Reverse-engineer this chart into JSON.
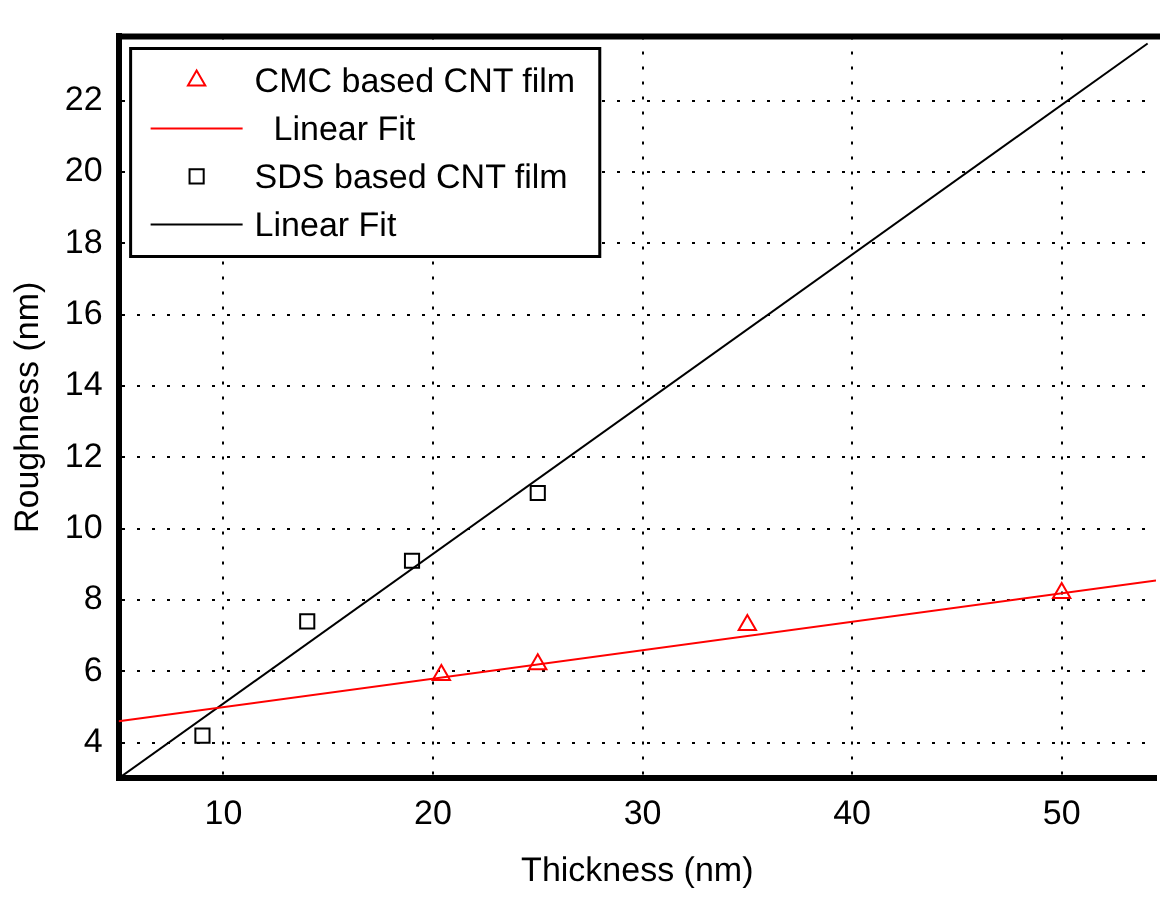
{
  "chart_data": {
    "type": "scatter",
    "xlabel": "Thickness (nm)",
    "ylabel": "Roughness (nm)",
    "xlim": [
      5,
      54.5
    ],
    "xticks": [
      10,
      20,
      30,
      40,
      50
    ],
    "ylim": [
      3,
      23.8
    ],
    "yticks": [
      4,
      6,
      8,
      10,
      12,
      14,
      16,
      18,
      20,
      22
    ],
    "grid": true,
    "legend": "top left",
    "series": [
      {
        "name": "CMC based CNT film",
        "marker": "triangle",
        "color": "#ff0000",
        "x": [
          20.4,
          25,
          35,
          50
        ],
        "values": [
          5.9,
          6.2,
          7.3,
          8.2
        ]
      },
      {
        "name": "  Linear Fit",
        "type": "line",
        "marker": "none",
        "color": "#ff0000",
        "x": [
          5,
          54.5
        ],
        "values": [
          4.6,
          8.55
        ]
      },
      {
        "name": "SDS based CNT film",
        "marker": "square",
        "color": "#000000",
        "x": [
          9,
          14,
          19,
          25
        ],
        "values": [
          4.2,
          7.4,
          9.1,
          11
        ]
      },
      {
        "name": "Linear Fit",
        "type": "line",
        "marker": "none",
        "color": "#000000",
        "x": [
          5,
          54.1
        ],
        "values": [
          3,
          23.6
        ]
      }
    ]
  }
}
